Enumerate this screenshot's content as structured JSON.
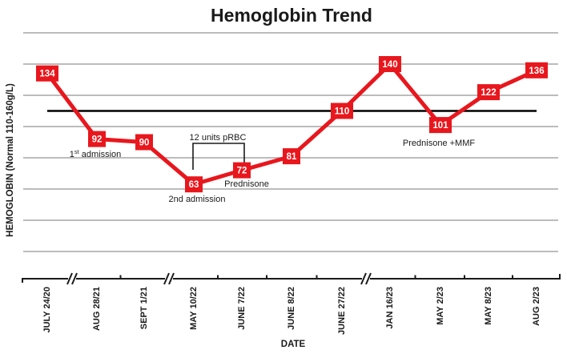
{
  "chart_data": {
    "type": "line",
    "title": "Hemoglobin Trend",
    "xlabel": "DATE",
    "ylabel": "HEMOGLOBIN (Normal 110-160g/L)",
    "categories": [
      "JULY 24/20",
      "AUG 28/21",
      "SEPT 1/21",
      "MAY 10/22",
      "JUNE 7/22",
      "JUNE 8/22",
      "JUNE 27/22",
      "JAN 16/23",
      "MAY 2/23",
      "MAY 8/23",
      "AUG 2/23"
    ],
    "values": [
      134,
      92,
      90,
      63,
      72,
      81,
      110,
      140,
      101,
      122,
      136
    ],
    "series_color": "#e8171d",
    "grid_color": "#a6a6a6",
    "data_labels": true,
    "legend": false,
    "grid": true,
    "ylim": [
      0,
      170
    ],
    "gridline_values": [
      20,
      40,
      60,
      80,
      100,
      120,
      140,
      160
    ],
    "reference_line": {
      "value": 110,
      "color": "#000000",
      "meaning": "lower limit of normal"
    },
    "axis_breaks_after": [
      0,
      2,
      6
    ],
    "annotations": [
      {
        "text": "1st admission",
        "sup": "st"
      },
      {
        "text": "2nd admission"
      },
      {
        "text": "12 units pRBC",
        "bracket": true
      },
      {
        "text": "Prednisone"
      },
      {
        "text": "Prednisone +MMF"
      }
    ]
  }
}
